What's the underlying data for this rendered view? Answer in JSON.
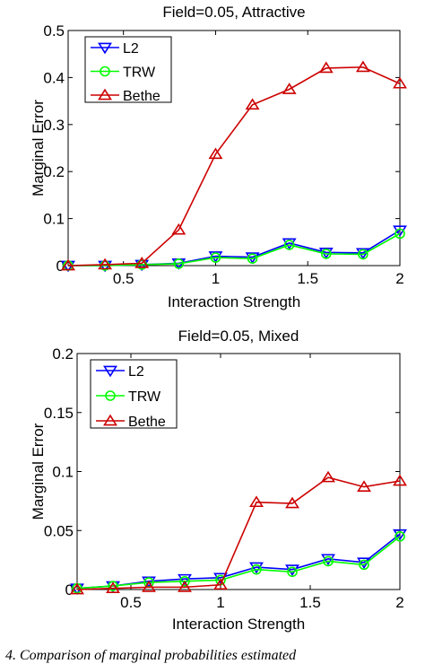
{
  "chart_data": [
    {
      "type": "line",
      "title": "Field=0.05, Attractive",
      "xlabel": "Interaction Strength",
      "ylabel": "Marginal Error",
      "xlim": [
        0.2,
        2
      ],
      "ylim": [
        0,
        0.5
      ],
      "xticks": [
        "0.5",
        "1",
        "1.5",
        "2"
      ],
      "yticks": [
        "0",
        "0.1",
        "0.2",
        "0.3",
        "0.4",
        "0.5"
      ],
      "x": [
        0.2,
        0.4,
        0.6,
        0.8,
        1.0,
        1.2,
        1.4,
        1.6,
        1.8,
        2.0
      ],
      "legend_position": "top-left",
      "series": [
        {
          "name": "L2",
          "color": "#0000ff",
          "marker": "triangle-down",
          "values": [
            0.0,
            0.0,
            0.002,
            0.005,
            0.02,
            0.018,
            0.048,
            0.028,
            0.027,
            0.075
          ]
        },
        {
          "name": "TRW",
          "color": "#00ff00",
          "marker": "circle",
          "values": [
            0.0,
            0.0,
            0.002,
            0.004,
            0.017,
            0.015,
            0.044,
            0.025,
            0.024,
            0.068
          ]
        },
        {
          "name": "Bethe",
          "color": "#cc0000",
          "marker": "triangle-up",
          "values": [
            0.0,
            0.002,
            0.005,
            0.076,
            0.237,
            0.342,
            0.375,
            0.42,
            0.422,
            0.387
          ]
        }
      ]
    },
    {
      "type": "line",
      "title": "Field=0.05, Mixed",
      "xlabel": "Interaction Strength",
      "ylabel": "Marginal Error",
      "xlim": [
        0.2,
        2
      ],
      "ylim": [
        0,
        0.2
      ],
      "xticks": [
        "0.5",
        "1",
        "1.5",
        "2"
      ],
      "yticks": [
        "0",
        "0.05",
        "0.1",
        "0.15",
        "0.2"
      ],
      "x": [
        0.2,
        0.4,
        0.6,
        0.8,
        1.0,
        1.2,
        1.4,
        1.6,
        1.8,
        2.0
      ],
      "legend_position": "top-left",
      "series": [
        {
          "name": "L2",
          "color": "#0000ff",
          "marker": "triangle-down",
          "values": [
            0.001,
            0.003,
            0.007,
            0.009,
            0.01,
            0.019,
            0.017,
            0.026,
            0.023,
            0.047
          ]
        },
        {
          "name": "TRW",
          "color": "#00ff00",
          "marker": "circle",
          "values": [
            0.001,
            0.003,
            0.006,
            0.007,
            0.008,
            0.017,
            0.015,
            0.024,
            0.021,
            0.045
          ]
        },
        {
          "name": "Bethe",
          "color": "#cc0000",
          "marker": "triangle-up",
          "values": [
            0.0,
            0.001,
            0.002,
            0.002,
            0.004,
            0.074,
            0.073,
            0.095,
            0.087,
            0.092
          ]
        }
      ]
    }
  ],
  "caption": "4. Comparison of marginal probabilities estimated"
}
